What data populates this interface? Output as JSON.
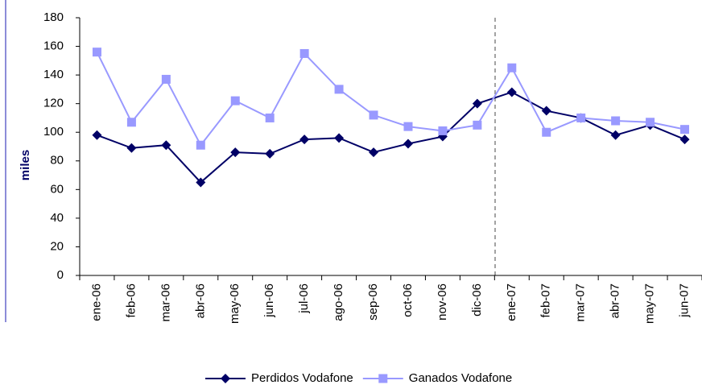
{
  "chart_data": {
    "type": "line",
    "ylabel": "miles",
    "categories": [
      "ene-06",
      "feb-06",
      "mar-06",
      "abr-06",
      "may-06",
      "jun-06",
      "jul-06",
      "ago-06",
      "sep-06",
      "oct-06",
      "nov-06",
      "dic-06",
      "ene-07",
      "feb-07",
      "mar-07",
      "abr-07",
      "may-07",
      "jun-07"
    ],
    "series": [
      {
        "name": "Perdidos Vodafone",
        "color": "#000066",
        "marker": "diamond",
        "values": [
          98,
          89,
          91,
          65,
          86,
          85,
          95,
          96,
          86,
          92,
          97,
          120,
          128,
          115,
          110,
          98,
          105,
          95
        ]
      },
      {
        "name": "Ganados Vodafone",
        "color": "#9999ff",
        "marker": "square",
        "values": [
          156,
          107,
          137,
          91,
          122,
          110,
          155,
          130,
          112,
          104,
          101,
          105,
          145,
          100,
          110,
          108,
          107,
          102
        ]
      }
    ],
    "ylim": [
      0,
      180
    ],
    "yticks": [
      0,
      20,
      40,
      60,
      80,
      100,
      120,
      140,
      160,
      180
    ],
    "legend": "bottom"
  }
}
